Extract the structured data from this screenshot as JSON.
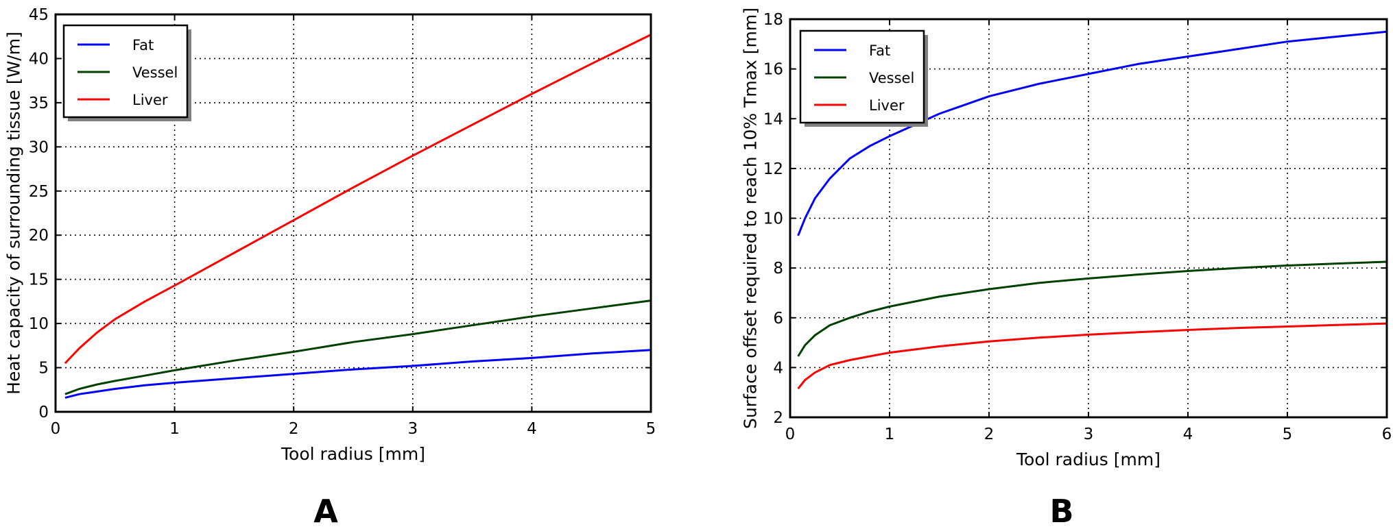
{
  "chart_data": [
    {
      "type": "line",
      "panel_label": "A",
      "xlabel": "Tool radius [mm]",
      "ylabel": "Heat capacity of surrounding tissue [W/m]",
      "xlim": [
        0,
        5
      ],
      "ylim": [
        0,
        45
      ],
      "xticks": [
        0,
        1,
        2,
        3,
        4,
        5
      ],
      "yticks": [
        0,
        5,
        10,
        15,
        20,
        25,
        30,
        35,
        40,
        45
      ],
      "grid": true,
      "legend_position": "top-left",
      "x": [
        0.08,
        0.2,
        0.35,
        0.5,
        0.75,
        1.0,
        1.5,
        2.0,
        2.5,
        3.0,
        3.5,
        4.0,
        4.5,
        5.0
      ],
      "series": [
        {
          "name": "Fat",
          "color": "#0000ff",
          "values": [
            1.6,
            2.0,
            2.3,
            2.6,
            3.0,
            3.3,
            3.8,
            4.3,
            4.8,
            5.2,
            5.7,
            6.1,
            6.6,
            7.0
          ]
        },
        {
          "name": "Vessel",
          "color": "#004000",
          "values": [
            2.0,
            2.6,
            3.1,
            3.5,
            4.1,
            4.7,
            5.8,
            6.8,
            7.9,
            8.8,
            9.8,
            10.8,
            11.7,
            12.6
          ]
        },
        {
          "name": "Liver",
          "color": "#ff0000",
          "values": [
            5.5,
            7.2,
            9.0,
            10.5,
            12.5,
            14.3,
            18.0,
            21.7,
            25.4,
            29.0,
            32.5,
            36.0,
            39.4,
            42.7
          ]
        }
      ]
    },
    {
      "type": "line",
      "panel_label": "B",
      "xlabel": "Tool radius [mm]",
      "ylabel": "Surface offset required to reach 10% Tmax [mm]",
      "xlim": [
        0,
        6
      ],
      "ylim": [
        2,
        18
      ],
      "xticks": [
        0,
        1,
        2,
        3,
        4,
        5,
        6
      ],
      "yticks": [
        2,
        4,
        6,
        8,
        10,
        12,
        14,
        16,
        18
      ],
      "grid": true,
      "legend_position": "top-left",
      "x": [
        0.08,
        0.15,
        0.25,
        0.4,
        0.6,
        0.8,
        1.0,
        1.5,
        2.0,
        2.5,
        3.0,
        3.5,
        4.0,
        4.5,
        5.0,
        5.5,
        6.0
      ],
      "series": [
        {
          "name": "Fat",
          "color": "#0000ff",
          "values": [
            9.3,
            10.0,
            10.8,
            11.6,
            12.4,
            12.9,
            13.3,
            14.2,
            14.9,
            15.4,
            15.8,
            16.2,
            16.5,
            16.8,
            17.1,
            17.3,
            17.5
          ]
        },
        {
          "name": "Vessel",
          "color": "#004000",
          "values": [
            4.45,
            4.9,
            5.3,
            5.7,
            6.0,
            6.25,
            6.45,
            6.85,
            7.15,
            7.4,
            7.58,
            7.74,
            7.88,
            8.0,
            8.1,
            8.18,
            8.25
          ]
        },
        {
          "name": "Liver",
          "color": "#ff0000",
          "values": [
            3.15,
            3.5,
            3.8,
            4.1,
            4.3,
            4.45,
            4.6,
            4.85,
            5.05,
            5.2,
            5.32,
            5.42,
            5.51,
            5.59,
            5.65,
            5.71,
            5.77
          ]
        }
      ]
    }
  ]
}
